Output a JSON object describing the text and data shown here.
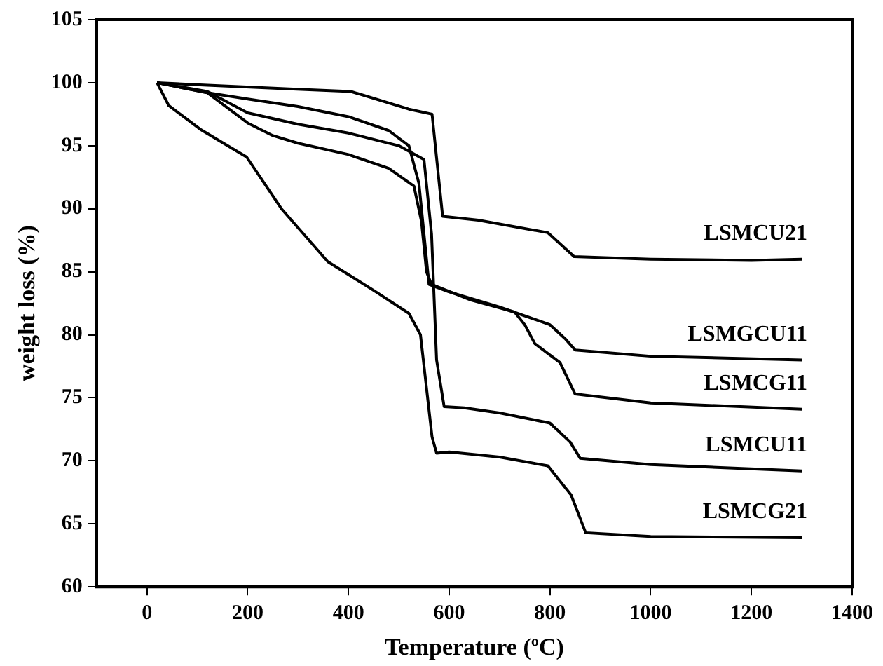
{
  "chart_data": {
    "type": "line",
    "xlabel": "Temperature (ºC)",
    "ylabel": "weight loss (%)",
    "xlim": [
      -100,
      1400
    ],
    "xticks": [
      0,
      200,
      400,
      600,
      800,
      1000,
      1200,
      1400
    ],
    "ylim": [
      60,
      105
    ],
    "yticks": [
      60,
      65,
      70,
      75,
      80,
      85,
      90,
      95,
      100,
      105
    ],
    "grid": false,
    "legend": false,
    "marker": "none",
    "line_style": "solid",
    "series": [
      {
        "name": "LSMCU21",
        "color": "#000000",
        "x": [
          20,
          120,
          290,
          405,
          520,
          566,
          587,
          658,
          796,
          848,
          1000,
          1200,
          1300
        ],
        "values": [
          100,
          99.8,
          99.5,
          99.3,
          97.9,
          97.5,
          89.4,
          89.1,
          88.1,
          86.2,
          86.0,
          85.9,
          86.0
        ]
      },
      {
        "name": "LSMGCU11",
        "color": "#000000",
        "x": [
          20,
          120,
          200,
          300,
          400,
          480,
          520,
          540,
          550,
          560,
          600,
          700,
          800,
          830,
          850,
          1000,
          1300
        ],
        "values": [
          100,
          99.2,
          98.7,
          98.1,
          97.3,
          96.2,
          95,
          92,
          88,
          84,
          83.4,
          82.2,
          80.8,
          79.7,
          78.8,
          78.3,
          78.0
        ]
      },
      {
        "name": "LSMCG11",
        "color": "#000000",
        "x": [
          20,
          120,
          200,
          250,
          300,
          400,
          480,
          530,
          545,
          555,
          565,
          640,
          730,
          750,
          770,
          800,
          820,
          850,
          1000,
          1300
        ],
        "values": [
          100,
          99.2,
          96.8,
          95.8,
          95.2,
          94.3,
          93.2,
          91.8,
          89,
          85,
          84,
          82.8,
          81.8,
          80.8,
          79.3,
          78.4,
          77.8,
          75.3,
          74.6,
          74.1
        ]
      },
      {
        "name": "LSMCU11",
        "color": "#000000",
        "x": [
          20,
          120,
          200,
          300,
          400,
          500,
          550,
          565,
          575,
          590,
          630,
          700,
          800,
          840,
          860,
          1000,
          1300
        ],
        "values": [
          100,
          99.3,
          97.6,
          96.7,
          96,
          95,
          93.9,
          88,
          78,
          74.3,
          74.2,
          73.8,
          73,
          71.5,
          70.2,
          69.7,
          69.2
        ]
      },
      {
        "name": "LSMCG21",
        "color": "#000000",
        "x": [
          20,
          43,
          106,
          198,
          267,
          313,
          359,
          451,
          520,
          543,
          566,
          575,
          600,
          700,
          796,
          842,
          871,
          1000,
          1300
        ],
        "values": [
          100,
          98.2,
          96.3,
          94.1,
          90,
          87.9,
          85.8,
          83.5,
          81.7,
          80,
          71.9,
          70.6,
          70.7,
          70.3,
          69.6,
          67.3,
          64.3,
          64.0,
          63.9
        ]
      }
    ]
  }
}
